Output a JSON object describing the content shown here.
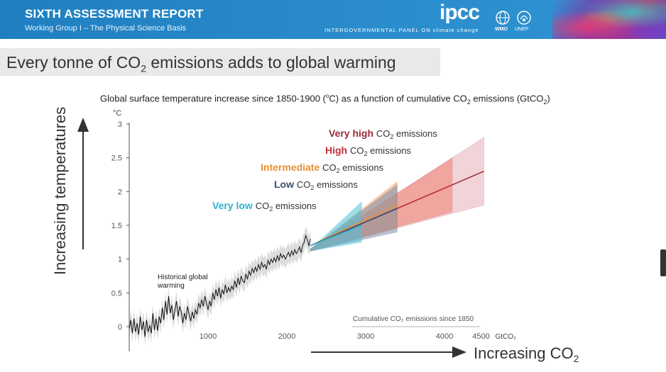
{
  "header": {
    "report_title": "SIXTH ASSESSMENT REPORT",
    "subtitle": "Working Group I – The Physical Science Basis",
    "logo_text": "ipcc",
    "org_name": "INTERGOVERNMENTAL PANEL ON climate change",
    "wmo_label": "WMO",
    "unep_label": "UNEP",
    "wmo_icon": "globe-icon",
    "unep_icon": "unep-icon"
  },
  "slide": {
    "title_pre": "Every tonne of CO",
    "title_sub": "2",
    "title_post": " emissions adds to global warming"
  },
  "chart_data": {
    "type": "line",
    "title": "Global surface temperature increase since 1850-1900 (ºC) as a function of cumulative CO₂ emissions (GtCO₂)",
    "title_pre": "Global surface temperature increase since 1850-1900 (",
    "title_mid": "C) as a function of cumulative CO",
    "title_sub1": "2",
    "title_mid2": " emissions (GtCO",
    "title_sub2": "2",
    "title_end": ")",
    "ylabel_unit": "°C",
    "ylim": [
      0,
      3
    ],
    "xlim": [
      0,
      4500
    ],
    "yticks": [
      "0",
      "0.5",
      "1",
      "1.5",
      "2",
      "2.5",
      "3"
    ],
    "ytick_values": [
      0,
      0.5,
      1,
      1.5,
      2,
      2.5,
      3
    ],
    "xticks": [
      "1000",
      "2000",
      "3000",
      "4000",
      "4500"
    ],
    "xtick_values": [
      1000,
      2000,
      3000,
      4000,
      4500
    ],
    "x_unit": "GtCO₂",
    "xlabel": "Cumulative CO₂ emissions since 1850",
    "historical_label": [
      "Historical global",
      "warming"
    ],
    "historical": [
      [
        0,
        -0.05
      ],
      [
        20,
        0.1
      ],
      [
        40,
        -0.1
      ],
      [
        60,
        0.12
      ],
      [
        80,
        -0.08
      ],
      [
        100,
        0.05
      ],
      [
        120,
        -0.12
      ],
      [
        140,
        0.15
      ],
      [
        160,
        -0.05
      ],
      [
        180,
        0.08
      ],
      [
        200,
        -0.15
      ],
      [
        220,
        0.1
      ],
      [
        240,
        -0.08
      ],
      [
        260,
        0.02
      ],
      [
        280,
        -0.1
      ],
      [
        300,
        0.2
      ],
      [
        320,
        -0.05
      ],
      [
        340,
        0.12
      ],
      [
        360,
        -0.06
      ],
      [
        380,
        0.15
      ],
      [
        400,
        0.05
      ],
      [
        420,
        0.28
      ],
      [
        440,
        0.1
      ],
      [
        460,
        0.38
      ],
      [
        480,
        0.18
      ],
      [
        500,
        0.45
      ],
      [
        520,
        0.2
      ],
      [
        540,
        0.32
      ],
      [
        560,
        0.1
      ],
      [
        580,
        0.25
      ],
      [
        600,
        0.38
      ],
      [
        620,
        0.15
      ],
      [
        640,
        0.3
      ],
      [
        660,
        0.22
      ],
      [
        680,
        0.05
      ],
      [
        700,
        0.2
      ],
      [
        720,
        0.1
      ],
      [
        740,
        0.3
      ],
      [
        760,
        0.18
      ],
      [
        780,
        0.08
      ],
      [
        800,
        0.22
      ],
      [
        820,
        0.12
      ],
      [
        840,
        0.25
      ],
      [
        860,
        0.18
      ],
      [
        880,
        0.35
      ],
      [
        900,
        0.28
      ],
      [
        920,
        0.4
      ],
      [
        940,
        0.3
      ],
      [
        960,
        0.45
      ],
      [
        980,
        0.35
      ],
      [
        1000,
        0.25
      ],
      [
        1020,
        0.38
      ],
      [
        1040,
        0.3
      ],
      [
        1060,
        0.5
      ],
      [
        1080,
        0.4
      ],
      [
        1100,
        0.55
      ],
      [
        1120,
        0.45
      ],
      [
        1140,
        0.58
      ],
      [
        1160,
        0.42
      ],
      [
        1180,
        0.55
      ],
      [
        1200,
        0.48
      ],
      [
        1220,
        0.62
      ],
      [
        1240,
        0.5
      ],
      [
        1260,
        0.58
      ],
      [
        1280,
        0.52
      ],
      [
        1300,
        0.6
      ],
      [
        1320,
        0.55
      ],
      [
        1340,
        0.68
      ],
      [
        1360,
        0.58
      ],
      [
        1380,
        0.72
      ],
      [
        1400,
        0.62
      ],
      [
        1420,
        0.75
      ],
      [
        1440,
        0.68
      ],
      [
        1460,
        0.65
      ],
      [
        1480,
        0.78
      ],
      [
        1500,
        0.7
      ],
      [
        1520,
        0.82
      ],
      [
        1540,
        0.76
      ],
      [
        1560,
        0.86
      ],
      [
        1580,
        0.8
      ],
      [
        1600,
        0.88
      ],
      [
        1620,
        0.82
      ],
      [
        1640,
        0.92
      ],
      [
        1660,
        0.85
      ],
      [
        1680,
        0.95
      ],
      [
        1700,
        0.88
      ],
      [
        1720,
        0.92
      ],
      [
        1740,
        0.85
      ],
      [
        1760,
        0.98
      ],
      [
        1780,
        0.92
      ],
      [
        1800,
        1.0
      ],
      [
        1820,
        0.95
      ],
      [
        1840,
        1.02
      ],
      [
        1860,
        0.96
      ],
      [
        1880,
        1.05
      ],
      [
        1900,
        0.98
      ],
      [
        1920,
        1.08
      ],
      [
        1940,
        1.02
      ],
      [
        1960,
        1.06
      ],
      [
        1980,
        1.0
      ],
      [
        2000,
        1.05
      ],
      [
        2020,
        1.1
      ],
      [
        2040,
        1.04
      ],
      [
        2060,
        1.12
      ],
      [
        2080,
        1.06
      ],
      [
        2100,
        1.14
      ],
      [
        2120,
        1.08
      ],
      [
        2140,
        1.12
      ],
      [
        2160,
        1.18
      ],
      [
        2180,
        1.1
      ],
      [
        2200,
        1.2
      ],
      [
        2220,
        1.25
      ],
      [
        2240,
        1.35
      ],
      [
        2260,
        1.28
      ],
      [
        2280,
        1.2
      ],
      [
        2300,
        1.3
      ]
    ],
    "series": [
      {
        "name": "Very high",
        "end_x": 4500,
        "mean_end": 2.3,
        "lo_end": 1.8,
        "hi_end": 2.8,
        "color": "#9b2a3a",
        "fill": "#e8b0b8"
      },
      {
        "name": "High",
        "end_x": 4100,
        "mean_end": 2.1,
        "lo_end": 1.7,
        "hi_end": 2.5,
        "color": "#c0303a",
        "fill": "#f08070"
      },
      {
        "name": "Intermediate",
        "end_x": 3400,
        "mean_end": 1.8,
        "lo_end": 1.45,
        "hi_end": 2.15,
        "color": "#e89030",
        "fill": "#f4a060"
      },
      {
        "name": "Low",
        "end_x": 3400,
        "mean_end": 1.75,
        "lo_end": 1.4,
        "hi_end": 2.1,
        "color": "#3a4a70",
        "fill": "#8090b0"
      },
      {
        "name": "Very low",
        "end_x": 2950,
        "mean_end": 1.5,
        "lo_end": 1.25,
        "hi_end": 1.85,
        "color": "#30b0d0",
        "fill": "#50c0d8"
      }
    ],
    "series_start": {
      "x": 2300,
      "y": 1.2
    },
    "labels": [
      {
        "name": "Very high",
        "suffix": " emissions",
        "color": "#9b2a3a"
      },
      {
        "name": "High",
        "suffix": " emissions",
        "color": "#c0303a"
      },
      {
        "name": "Intermediate",
        "suffix": " emissions",
        "color": "#e89030"
      },
      {
        "name": "Low",
        "suffix": " emissions",
        "color": "#3a4a70"
      },
      {
        "name": "Very low",
        "suffix": " emissions",
        "color": "#30b0d0"
      }
    ],
    "co_text": "CO",
    "co_sub": "2"
  },
  "arrows": {
    "y_label": "Increasing temperatures",
    "x_label_pre": "Increasing CO",
    "x_label_sub": "2"
  }
}
